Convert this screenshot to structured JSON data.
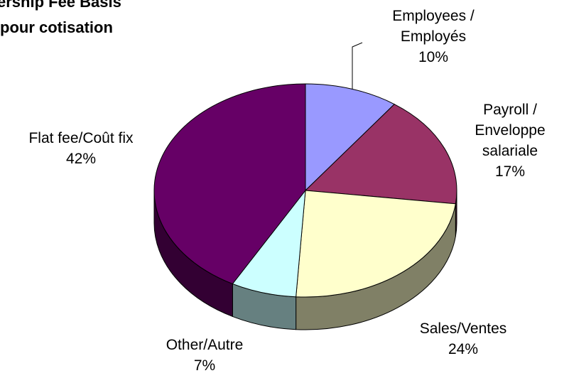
{
  "chart_data": {
    "type": "pie3d",
    "title": [
      "ership Fee Basis",
      "pour cotisation"
    ],
    "categories": [
      "Employees / Employés",
      "Payroll / Enveloppe salariale",
      "Sales/Ventes",
      "Other/Autre",
      "Flat fee/Coût fix"
    ],
    "values": [
      10,
      17,
      24,
      7,
      42
    ],
    "value_labels": [
      "10%",
      "17%",
      "24%",
      "7%",
      "42%"
    ],
    "colors": [
      "#9999ff",
      "#993366",
      "#ffffcc",
      "#ccffff",
      "#660066"
    ]
  }
}
